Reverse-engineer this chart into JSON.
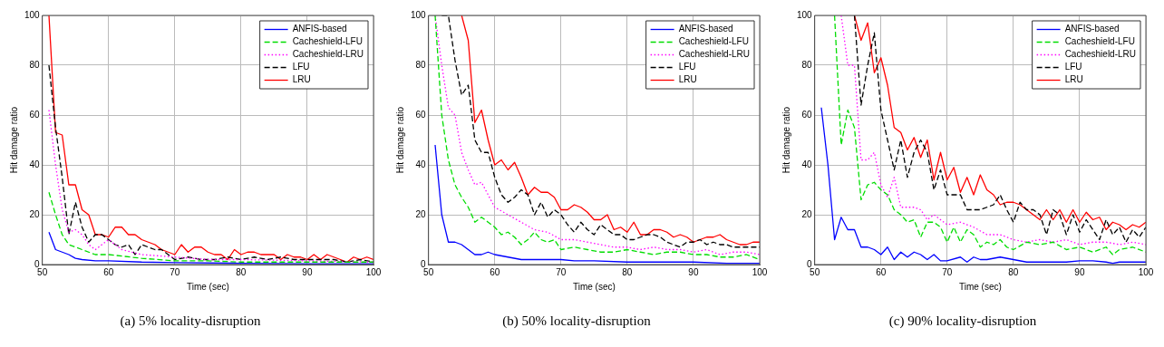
{
  "chart_data": [
    {
      "type": "line",
      "title": "(a) 5% locality-disruption",
      "xlabel": "Time (sec)",
      "ylabel": "Hit damage ratio",
      "xlim": [
        50,
        100
      ],
      "xticks": [
        50,
        60,
        70,
        80,
        90,
        100
      ],
      "ylim": [
        0,
        100
      ],
      "yticks": [
        0,
        20,
        40,
        60,
        80,
        100
      ],
      "grid": true,
      "legend": "top right",
      "marker": "none",
      "series": [
        {
          "name": "ANFIS-based",
          "color": "#0000ff",
          "line_style": "solid",
          "x": [
            51,
            52,
            53,
            54,
            55,
            56,
            58,
            60,
            65,
            70,
            80,
            90,
            100
          ],
          "values": [
            13,
            6,
            5,
            4,
            2.5,
            2,
            1.5,
            1.5,
            1,
            0.8,
            0.5,
            0.3,
            0.3
          ]
        },
        {
          "name": "Cacheshield-LFU",
          "color": "#00dd00",
          "line_style": "dashed",
          "x": [
            51,
            52,
            53,
            54,
            56,
            58,
            60,
            65,
            70,
            75,
            80,
            90,
            100
          ],
          "values": [
            29,
            20,
            12,
            8,
            6,
            4,
            4,
            2.5,
            1.5,
            1.5,
            1,
            1,
            1
          ]
        },
        {
          "name": "Cacheshield-LRU",
          "color": "#ff00ff",
          "line_style": "dotted",
          "x": [
            51,
            52,
            53,
            54,
            55,
            56,
            57,
            58,
            60,
            62,
            65,
            70,
            75,
            80,
            90,
            100
          ],
          "values": [
            62,
            40,
            22,
            13,
            14,
            12,
            8,
            6,
            10,
            6,
            4,
            3,
            2,
            2,
            1.5,
            1
          ]
        },
        {
          "name": "LFU",
          "color": "#000000",
          "line_style": "dashed",
          "x": [
            51,
            52,
            53,
            54,
            55,
            56,
            57,
            58,
            59,
            60,
            61,
            62,
            63,
            64,
            65,
            66,
            67,
            68,
            70,
            72,
            74,
            76,
            78,
            80,
            82,
            84,
            86,
            88,
            90,
            92,
            94,
            96,
            98,
            100
          ],
          "values": [
            80,
            55,
            35,
            12,
            25,
            15,
            9,
            12,
            12,
            10,
            8,
            7,
            8,
            4,
            8,
            7,
            6,
            6,
            2,
            3,
            2,
            2,
            3,
            2,
            3,
            2,
            3,
            2,
            2,
            2,
            2,
            1,
            2,
            1
          ]
        },
        {
          "name": "LRU",
          "color": "#ff0000",
          "line_style": "solid",
          "x": [
            51,
            52,
            53,
            54,
            55,
            56,
            57,
            58,
            59,
            60,
            61,
            62,
            63,
            64,
            65,
            66,
            67,
            68,
            69,
            70,
            71,
            72,
            73,
            74,
            75,
            76,
            77,
            78,
            79,
            80,
            81,
            82,
            83,
            84,
            85,
            86,
            87,
            88,
            89,
            90,
            91,
            92,
            93,
            94,
            95,
            96,
            97,
            98,
            99,
            100
          ],
          "values": [
            100,
            53,
            52,
            32,
            32,
            22,
            20,
            12,
            12,
            11,
            15,
            15,
            12,
            12,
            10,
            9,
            8,
            6,
            5,
            4,
            8,
            5,
            7,
            7,
            5,
            4,
            4,
            2,
            6,
            4,
            5,
            5,
            4,
            4,
            4,
            2,
            4,
            3,
            3,
            2,
            4,
            2,
            4,
            3,
            2,
            1,
            3,
            2,
            3,
            2
          ]
        }
      ]
    },
    {
      "type": "line",
      "title": "(b) 50% locality-disruption",
      "xlabel": "Time (sec)",
      "ylabel": "Hit damage ratio",
      "xlim": [
        50,
        100
      ],
      "xticks": [
        50,
        60,
        70,
        80,
        90,
        100
      ],
      "ylim": [
        0,
        100
      ],
      "yticks": [
        0,
        20,
        40,
        60,
        80,
        100
      ],
      "grid": true,
      "legend": "top right",
      "marker": "none",
      "series": [
        {
          "name": "ANFIS-based",
          "color": "#0000ff",
          "line_style": "solid",
          "x": [
            51,
            52,
            53,
            54,
            55,
            56,
            57,
            58,
            59,
            60,
            62,
            64,
            66,
            68,
            70,
            72,
            75,
            80,
            85,
            90,
            95,
            100
          ],
          "values": [
            48,
            20,
            9,
            9,
            8,
            6,
            4,
            4,
            5,
            4,
            3,
            2,
            2,
            2,
            2,
            1.5,
            1.5,
            1,
            1,
            1,
            0.5,
            0.5
          ]
        },
        {
          "name": "Cacheshield-LFU",
          "color": "#00dd00",
          "line_style": "dashed",
          "x": [
            51,
            52,
            53,
            54,
            55,
            56,
            57,
            58,
            59,
            60,
            61,
            62,
            63,
            64,
            65,
            66,
            67,
            68,
            69,
            70,
            72,
            74,
            76,
            78,
            80,
            82,
            84,
            86,
            88,
            90,
            92,
            94,
            96,
            98,
            100
          ],
          "values": [
            100,
            60,
            42,
            32,
            27,
            23,
            17,
            19,
            17,
            15,
            12,
            13,
            11,
            8,
            10,
            13,
            10,
            9,
            10,
            6,
            7,
            6,
            5,
            5,
            6,
            5,
            4,
            5,
            5,
            4,
            4,
            3,
            3,
            4,
            2
          ]
        },
        {
          "name": "Cacheshield-LRU",
          "color": "#ff00ff",
          "line_style": "dotted",
          "x": [
            51,
            52,
            53,
            54,
            55,
            56,
            57,
            58,
            59,
            60,
            62,
            64,
            66,
            68,
            70,
            72,
            74,
            76,
            78,
            80,
            82,
            84,
            86,
            88,
            90,
            92,
            94,
            96,
            98,
            100
          ],
          "values": [
            100,
            80,
            63,
            60,
            45,
            38,
            32,
            33,
            28,
            23,
            20,
            17,
            14,
            13,
            10,
            10,
            9,
            8,
            7,
            7,
            6,
            7,
            6,
            6,
            5,
            6,
            4,
            5,
            5,
            4
          ]
        },
        {
          "name": "LFU",
          "color": "#000000",
          "line_style": "dashed",
          "x": [
            52,
            53,
            54,
            55,
            56,
            57,
            58,
            59,
            60,
            61,
            62,
            63,
            64,
            65,
            66,
            67,
            68,
            69,
            70,
            71,
            72,
            73,
            74,
            75,
            76,
            77,
            78,
            79,
            80,
            81,
            82,
            83,
            84,
            85,
            86,
            87,
            88,
            89,
            90,
            91,
            92,
            93,
            94,
            95,
            96,
            97,
            98,
            99,
            100
          ],
          "values": [
            100,
            100,
            82,
            68,
            72,
            50,
            45,
            45,
            35,
            28,
            25,
            27,
            30,
            28,
            20,
            25,
            19,
            22,
            20,
            16,
            13,
            17,
            14,
            12,
            16,
            14,
            12,
            12,
            10,
            10,
            11,
            12,
            12,
            11,
            9,
            8,
            7,
            9,
            9,
            10,
            8,
            9,
            8,
            8,
            7,
            7,
            7,
            7,
            7
          ]
        },
        {
          "name": "LRU",
          "color": "#ff0000",
          "line_style": "solid",
          "x": [
            55,
            56,
            57,
            58,
            59,
            60,
            61,
            62,
            63,
            64,
            65,
            66,
            67,
            68,
            69,
            70,
            71,
            72,
            73,
            74,
            75,
            76,
            77,
            78,
            79,
            80,
            81,
            82,
            83,
            84,
            85,
            86,
            87,
            88,
            89,
            90,
            91,
            92,
            93,
            94,
            95,
            96,
            97,
            98,
            99,
            100
          ],
          "values": [
            100,
            90,
            57,
            62,
            50,
            40,
            42,
            38,
            41,
            35,
            28,
            31,
            29,
            29,
            27,
            22,
            22,
            24,
            23,
            21,
            18,
            18,
            20,
            14,
            15,
            13,
            17,
            12,
            12,
            14,
            14,
            13,
            11,
            12,
            11,
            9,
            10,
            11,
            11,
            12,
            10,
            9,
            8,
            8,
            9,
            9
          ]
        }
      ]
    },
    {
      "type": "line",
      "title": "(c) 90% locality-disruption",
      "xlabel": "Time (sec)",
      "ylabel": "Hit damage ratio",
      "xlim": [
        50,
        100
      ],
      "xticks": [
        50,
        60,
        70,
        80,
        90,
        100
      ],
      "ylim": [
        0,
        100
      ],
      "yticks": [
        0,
        20,
        40,
        60,
        80,
        100
      ],
      "grid": true,
      "legend": "top right",
      "marker": "none",
      "series": [
        {
          "name": "ANFIS-based",
          "color": "#0000ff",
          "line_style": "solid",
          "x": [
            51,
            52,
            53,
            54,
            55,
            56,
            57,
            58,
            59,
            60,
            61,
            62,
            63,
            64,
            65,
            66,
            67,
            68,
            69,
            70,
            72,
            73,
            74,
            75,
            76,
            78,
            80,
            82,
            84,
            86,
            88,
            90,
            92,
            94,
            95,
            96,
            98,
            100
          ],
          "values": [
            63,
            40,
            10,
            19,
            14,
            14,
            7,
            7,
            6,
            4,
            7,
            2,
            5,
            3,
            5,
            4,
            2,
            4,
            1.5,
            1.5,
            3,
            1,
            3,
            2,
            2,
            3,
            2,
            1,
            1,
            1,
            1,
            1.5,
            1.5,
            1,
            0.5,
            1,
            1,
            1
          ]
        },
        {
          "name": "Cacheshield-LFU",
          "color": "#00dd00",
          "line_style": "dashed",
          "x": [
            53,
            54,
            55,
            56,
            57,
            58,
            59,
            60,
            61,
            62,
            63,
            64,
            65,
            66,
            67,
            68,
            69,
            70,
            71,
            72,
            73,
            74,
            75,
            76,
            77,
            78,
            79,
            80,
            82,
            84,
            86,
            88,
            90,
            92,
            94,
            95,
            96,
            98,
            100
          ],
          "values": [
            100,
            48,
            62,
            55,
            26,
            32,
            33,
            30,
            28,
            22,
            20,
            17,
            18,
            11,
            17,
            17,
            15,
            9,
            15,
            9,
            14,
            12,
            7,
            9,
            8,
            10,
            7,
            6,
            9,
            8,
            9,
            6,
            7,
            5,
            7,
            4,
            6,
            7,
            5
          ]
        },
        {
          "name": "Cacheshield-LRU",
          "color": "#ff00ff",
          "line_style": "dotted",
          "x": [
            54,
            55,
            56,
            57,
            58,
            59,
            60,
            61,
            62,
            63,
            64,
            65,
            66,
            67,
            68,
            70,
            72,
            74,
            76,
            78,
            80,
            82,
            84,
            86,
            88,
            90,
            92,
            94,
            96,
            98,
            100
          ],
          "values": [
            100,
            80,
            80,
            42,
            42,
            45,
            32,
            27,
            35,
            23,
            23,
            23,
            22,
            18,
            20,
            16,
            17,
            15,
            12,
            12,
            10,
            9,
            10,
            9,
            10,
            8,
            9,
            9,
            8,
            9,
            8
          ]
        },
        {
          "name": "LFU",
          "color": "#000000",
          "line_style": "dashed",
          "x": [
            56,
            57,
            58,
            59,
            60,
            61,
            62,
            63,
            64,
            65,
            66,
            67,
            68,
            69,
            70,
            71,
            72,
            73,
            74,
            75,
            76,
            77,
            78,
            79,
            80,
            81,
            82,
            83,
            84,
            85,
            86,
            87,
            88,
            89,
            90,
            91,
            92,
            93,
            94,
            95,
            96,
            97,
            98,
            99,
            100
          ],
          "values": [
            100,
            64,
            80,
            93,
            62,
            50,
            38,
            50,
            35,
            45,
            50,
            45,
            30,
            38,
            28,
            28,
            28,
            22,
            22,
            22,
            23,
            24,
            28,
            22,
            17,
            25,
            22,
            22,
            20,
            12,
            22,
            20,
            12,
            20,
            13,
            18,
            14,
            10,
            18,
            12,
            15,
            9,
            14,
            11,
            15
          ]
        },
        {
          "name": "LRU",
          "color": "#ff0000",
          "line_style": "solid",
          "x": [
            56,
            57,
            58,
            59,
            60,
            61,
            62,
            63,
            64,
            65,
            66,
            67,
            68,
            69,
            70,
            71,
            72,
            73,
            74,
            75,
            76,
            77,
            78,
            79,
            80,
            81,
            82,
            83,
            84,
            85,
            86,
            87,
            88,
            89,
            90,
            91,
            92,
            93,
            94,
            95,
            96,
            97,
            98,
            99,
            100
          ],
          "values": [
            100,
            90,
            97,
            77,
            83,
            72,
            55,
            53,
            46,
            51,
            43,
            50,
            34,
            45,
            34,
            39,
            29,
            35,
            28,
            36,
            30,
            28,
            24,
            25,
            25,
            24,
            22,
            20,
            18,
            22,
            18,
            22,
            17,
            22,
            17,
            21,
            18,
            19,
            14,
            17,
            16,
            14,
            16,
            15,
            17
          ]
        }
      ]
    }
  ]
}
